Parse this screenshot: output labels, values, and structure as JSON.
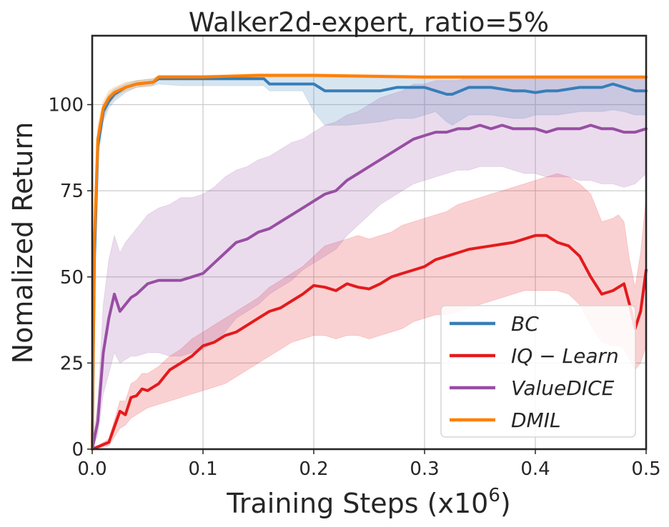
{
  "chart_data": {
    "type": "line",
    "title": "Walker2d-expert, ratio=5%",
    "xlabel": "Training Steps (x10",
    "xlabel_exp": "6",
    "xlabel_close": ")",
    "ylabel": "Nomalized Return",
    "xlim": [
      0.0,
      0.5
    ],
    "ylim": [
      0,
      120
    ],
    "x_ticks": [
      0.0,
      0.1,
      0.2,
      0.3,
      0.4,
      0.5
    ],
    "x_tick_labels": [
      "0.0",
      "0.1",
      "0.2",
      "0.3",
      "0.4",
      "0.5"
    ],
    "y_ticks": [
      0,
      25,
      50,
      75,
      100
    ],
    "y_tick_labels": [
      "0",
      "25",
      "50",
      "75",
      "100"
    ],
    "grid": true,
    "legend_position": "lower-right",
    "series": [
      {
        "name": "BC",
        "legend_label": "BC",
        "color": "#377eb8",
        "x": [
          0.0,
          0.002,
          0.005,
          0.01,
          0.015,
          0.02,
          0.03,
          0.04,
          0.055,
          0.06,
          0.08,
          0.1,
          0.12,
          0.155,
          0.16,
          0.19,
          0.2,
          0.21,
          0.23,
          0.26,
          0.275,
          0.29,
          0.3,
          0.31,
          0.32,
          0.325,
          0.34,
          0.36,
          0.38,
          0.39,
          0.4,
          0.41,
          0.42,
          0.44,
          0.46,
          0.47,
          0.48,
          0.49,
          0.5
        ],
        "y": [
          0,
          55,
          88,
          98,
          101,
          103,
          105,
          106,
          106.5,
          107.5,
          107.5,
          107.5,
          107.5,
          107.5,
          106,
          106,
          106,
          104,
          104,
          104,
          105,
          105,
          105,
          104,
          103,
          103,
          105,
          105,
          104,
          104,
          103.5,
          104,
          104,
          105,
          105,
          106,
          105,
          104,
          104
        ],
        "lower": [
          0,
          45,
          84,
          95,
          99,
          101,
          103.5,
          105,
          105.5,
          106,
          105.5,
          105.5,
          105.5,
          105.5,
          104,
          104,
          98,
          94,
          94,
          95,
          96,
          96,
          97,
          98,
          95,
          94,
          97,
          97,
          96,
          96,
          97,
          97,
          97,
          98,
          98,
          98.5,
          98,
          97,
          97
        ],
        "upper": [
          0,
          65,
          92,
          100,
          103,
          104.5,
          106,
          107,
          107.5,
          108.5,
          108.5,
          108.5,
          108.5,
          108.5,
          108,
          108,
          108,
          108,
          108,
          108,
          108,
          108,
          108,
          108,
          108,
          108,
          108,
          108,
          108,
          108,
          108,
          108,
          108,
          108,
          108,
          108,
          108,
          108,
          108
        ]
      },
      {
        "name": "IQ-Learn",
        "legend_label": "IQ − Learn",
        "color": "#e41a1c",
        "x": [
          0.0,
          0.015,
          0.025,
          0.03,
          0.035,
          0.04,
          0.045,
          0.05,
          0.055,
          0.06,
          0.07,
          0.08,
          0.09,
          0.1,
          0.11,
          0.12,
          0.13,
          0.14,
          0.15,
          0.16,
          0.17,
          0.18,
          0.19,
          0.2,
          0.21,
          0.22,
          0.23,
          0.24,
          0.25,
          0.26,
          0.27,
          0.28,
          0.29,
          0.3,
          0.31,
          0.32,
          0.33,
          0.34,
          0.35,
          0.36,
          0.37,
          0.38,
          0.39,
          0.4,
          0.41,
          0.42,
          0.43,
          0.44,
          0.45,
          0.46,
          0.47,
          0.475,
          0.48,
          0.485,
          0.49,
          0.495,
          0.5
        ],
        "y": [
          0,
          2,
          11,
          10,
          15,
          15.5,
          17.5,
          17,
          18,
          19,
          23,
          25,
          27,
          30,
          31,
          33,
          34,
          36,
          38,
          40,
          41,
          43,
          45,
          47.5,
          47,
          46,
          48,
          47,
          46.5,
          48,
          50,
          51,
          52,
          53,
          55,
          56,
          57,
          58,
          58.5,
          59,
          59.5,
          60,
          61,
          62,
          62,
          60,
          59,
          56,
          50,
          45,
          46,
          47,
          48,
          42,
          35,
          40,
          52
        ],
        "lower": [
          0,
          1,
          6,
          7,
          9,
          10,
          11,
          12,
          12.5,
          13,
          14,
          15,
          16,
          17,
          18,
          19,
          21,
          23,
          25,
          27,
          29,
          31,
          32,
          33,
          33,
          32,
          33,
          33,
          32,
          33,
          34,
          35,
          37,
          38,
          39,
          39,
          40,
          41,
          42,
          43,
          44,
          45,
          46,
          46,
          46,
          46,
          45,
          42,
          36,
          31,
          30,
          30,
          29,
          26,
          23,
          25,
          30
        ],
        "upper": [
          0,
          3,
          14,
          14,
          19,
          20,
          22,
          22,
          23,
          24,
          27,
          29,
          32,
          34,
          36,
          38,
          40,
          42,
          44,
          47,
          49,
          51,
          53,
          56,
          59,
          60,
          61,
          62,
          61,
          62,
          63,
          65,
          66,
          67,
          68,
          69,
          71,
          72,
          73,
          74,
          75,
          76,
          77,
          78,
          79,
          80,
          79,
          77,
          74,
          66,
          67,
          68,
          66,
          55,
          47,
          57,
          73
        ]
      },
      {
        "name": "ValueDICE",
        "legend_label": "ValueDICE",
        "color": "#984ea3",
        "x": [
          0.0,
          0.005,
          0.01,
          0.015,
          0.02,
          0.025,
          0.03,
          0.035,
          0.04,
          0.05,
          0.06,
          0.07,
          0.08,
          0.09,
          0.1,
          0.11,
          0.12,
          0.13,
          0.14,
          0.15,
          0.16,
          0.17,
          0.18,
          0.19,
          0.2,
          0.21,
          0.22,
          0.23,
          0.24,
          0.25,
          0.26,
          0.27,
          0.28,
          0.29,
          0.3,
          0.31,
          0.32,
          0.33,
          0.34,
          0.35,
          0.36,
          0.37,
          0.38,
          0.39,
          0.4,
          0.41,
          0.42,
          0.43,
          0.44,
          0.45,
          0.46,
          0.47,
          0.48,
          0.49,
          0.5
        ],
        "y": [
          0,
          8,
          28,
          38,
          45,
          40,
          42,
          44,
          45,
          48,
          49,
          49,
          49,
          50,
          51,
          54,
          57,
          60,
          61,
          63,
          64,
          66,
          68,
          70,
          72,
          74,
          75,
          78,
          80,
          82,
          84,
          86,
          88,
          90,
          91,
          92,
          92,
          93,
          93,
          94,
          93,
          94,
          93,
          93,
          93,
          92,
          93,
          93,
          93,
          94,
          93,
          93,
          92,
          92,
          93
        ],
        "lower": [
          0,
          4,
          16,
          22,
          28,
          25,
          26,
          27,
          27,
          28,
          28,
          27,
          27,
          28,
          29,
          31,
          34,
          38,
          40,
          42,
          45,
          47,
          49,
          52,
          54,
          56,
          58,
          62,
          65,
          68,
          71,
          73,
          75,
          77,
          78,
          79,
          80,
          81,
          81,
          82,
          82,
          82,
          81,
          80,
          80,
          79,
          79,
          79,
          78,
          78,
          77,
          77,
          76,
          77,
          80
        ],
        "upper": [
          0,
          14,
          42,
          55,
          62,
          57,
          60,
          62,
          64,
          68,
          70,
          71,
          73,
          73,
          74,
          76,
          79,
          81,
          82,
          84,
          85,
          87,
          89,
          90,
          92,
          94,
          95,
          97,
          98,
          100,
          102,
          103,
          104,
          106,
          106,
          107,
          107,
          107,
          108,
          108,
          108,
          108,
          108,
          108,
          108,
          108,
          108,
          108,
          108,
          108,
          108,
          108,
          108,
          108,
          108
        ]
      },
      {
        "name": "DMIL",
        "legend_label": "DMIL",
        "color": "#ff7f00",
        "x": [
          0.0,
          0.002,
          0.005,
          0.01,
          0.015,
          0.02,
          0.03,
          0.04,
          0.055,
          0.06,
          0.1,
          0.15,
          0.2,
          0.3,
          0.4,
          0.5
        ],
        "y": [
          0,
          60,
          90,
          99,
          102,
          103.5,
          105,
          106,
          106.5,
          108,
          108,
          108.5,
          108.5,
          108,
          108,
          108
        ],
        "lower": [
          0,
          50,
          86,
          96,
          100,
          102,
          104,
          105,
          105.5,
          107.5,
          107.5,
          108,
          108,
          107.5,
          107.5,
          107.5
        ],
        "upper": [
          0,
          70,
          94,
          101,
          104,
          105,
          106.5,
          107,
          107.5,
          108.5,
          108.5,
          109,
          109,
          108.5,
          108.5,
          108.5
        ]
      }
    ]
  }
}
